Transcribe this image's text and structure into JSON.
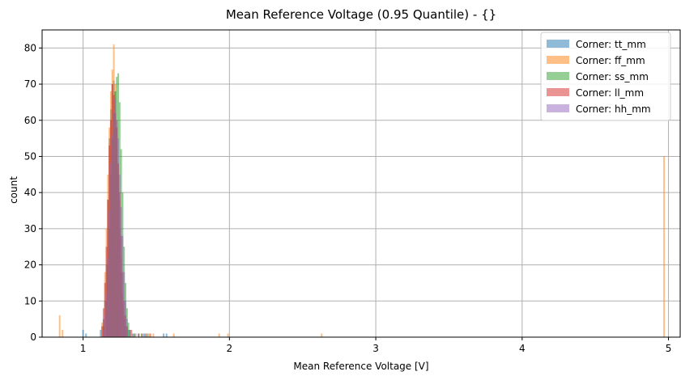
{
  "chart_data": {
    "type": "histogram",
    "title": "Mean Reference Voltage (0.95 Quantile) - {}",
    "xlabel": "Mean Reference Voltage [V]",
    "ylabel": "count",
    "xlim": [
      0.72,
      5.08
    ],
    "ylim": [
      0,
      85
    ],
    "xticks": [
      1,
      2,
      3,
      4,
      5
    ],
    "yticks": [
      0,
      10,
      20,
      30,
      40,
      50,
      60,
      70,
      80
    ],
    "grid": true,
    "legend_position": "top-right",
    "bin_width": 0.01,
    "series": [
      {
        "name": "Corner: tt_mm",
        "color": "#1f77b4",
        "bins": [
          [
            1.0,
            2
          ],
          [
            1.02,
            1
          ],
          [
            1.12,
            2
          ],
          [
            1.14,
            5
          ],
          [
            1.15,
            10
          ],
          [
            1.16,
            20
          ],
          [
            1.17,
            38
          ],
          [
            1.18,
            55
          ],
          [
            1.19,
            63
          ],
          [
            1.2,
            70
          ],
          [
            1.21,
            71
          ],
          [
            1.22,
            68
          ],
          [
            1.23,
            58
          ],
          [
            1.24,
            45
          ],
          [
            1.25,
            30
          ],
          [
            1.26,
            18
          ],
          [
            1.27,
            9
          ],
          [
            1.28,
            5
          ],
          [
            1.29,
            3
          ],
          [
            1.31,
            2
          ],
          [
            1.34,
            1
          ],
          [
            1.38,
            1
          ],
          [
            1.42,
            1
          ],
          [
            1.55,
            1
          ],
          [
            1.57,
            1
          ]
        ]
      },
      {
        "name": "Corner: ff_mm",
        "color": "#ff7f0e",
        "bins": [
          [
            0.84,
            6
          ],
          [
            0.86,
            2
          ],
          [
            1.13,
            4
          ],
          [
            1.15,
            18
          ],
          [
            1.16,
            30
          ],
          [
            1.17,
            45
          ],
          [
            1.18,
            58
          ],
          [
            1.19,
            68
          ],
          [
            1.2,
            74
          ],
          [
            1.21,
            81
          ],
          [
            1.22,
            70
          ],
          [
            1.23,
            60
          ],
          [
            1.24,
            48
          ],
          [
            1.25,
            38
          ],
          [
            1.26,
            22
          ],
          [
            1.27,
            12
          ],
          [
            1.28,
            6
          ],
          [
            1.3,
            3
          ],
          [
            1.32,
            2
          ],
          [
            1.35,
            1
          ],
          [
            1.4,
            1
          ],
          [
            1.45,
            1
          ],
          [
            1.48,
            1
          ],
          [
            1.62,
            1
          ],
          [
            1.93,
            1
          ],
          [
            1.99,
            1
          ],
          [
            2.63,
            1
          ],
          [
            4.97,
            50
          ]
        ]
      },
      {
        "name": "Corner: ss_mm",
        "color": "#2ca02c",
        "bins": [
          [
            1.14,
            3
          ],
          [
            1.16,
            10
          ],
          [
            1.17,
            20
          ],
          [
            1.18,
            30
          ],
          [
            1.19,
            45
          ],
          [
            1.2,
            55
          ],
          [
            1.21,
            62
          ],
          [
            1.22,
            68
          ],
          [
            1.23,
            72
          ],
          [
            1.24,
            73
          ],
          [
            1.25,
            65
          ],
          [
            1.26,
            52
          ],
          [
            1.27,
            40
          ],
          [
            1.28,
            25
          ],
          [
            1.29,
            15
          ],
          [
            1.3,
            8
          ],
          [
            1.31,
            4
          ],
          [
            1.32,
            2
          ],
          [
            1.35,
            1
          ],
          [
            1.4,
            1
          ],
          [
            1.44,
            1
          ]
        ]
      },
      {
        "name": "Corner: ll_mm",
        "color": "#d62728",
        "bins": [
          [
            1.13,
            3
          ],
          [
            1.14,
            8
          ],
          [
            1.15,
            15
          ],
          [
            1.16,
            25
          ],
          [
            1.17,
            38
          ],
          [
            1.18,
            53
          ],
          [
            1.19,
            60
          ],
          [
            1.2,
            70
          ],
          [
            1.21,
            67
          ],
          [
            1.22,
            62
          ],
          [
            1.23,
            58
          ],
          [
            1.24,
            48
          ],
          [
            1.25,
            40
          ],
          [
            1.26,
            28
          ],
          [
            1.27,
            18
          ],
          [
            1.28,
            10
          ],
          [
            1.29,
            6
          ],
          [
            1.3,
            3
          ],
          [
            1.33,
            2
          ],
          [
            1.38,
            1
          ],
          [
            1.43,
            1
          ],
          [
            1.46,
            1
          ]
        ]
      },
      {
        "name": "Corner: hh_mm",
        "color": "#9467bd",
        "bins": [
          [
            1.14,
            2
          ],
          [
            1.15,
            6
          ],
          [
            1.16,
            12
          ],
          [
            1.17,
            22
          ],
          [
            1.18,
            35
          ],
          [
            1.19,
            48
          ],
          [
            1.2,
            56
          ],
          [
            1.21,
            62
          ],
          [
            1.22,
            66
          ],
          [
            1.23,
            60
          ],
          [
            1.24,
            55
          ],
          [
            1.25,
            45
          ],
          [
            1.26,
            36
          ],
          [
            1.27,
            28
          ],
          [
            1.28,
            18
          ],
          [
            1.29,
            10
          ],
          [
            1.3,
            5
          ],
          [
            1.32,
            2
          ],
          [
            1.36,
            1
          ],
          [
            1.41,
            1
          ]
        ]
      }
    ]
  }
}
